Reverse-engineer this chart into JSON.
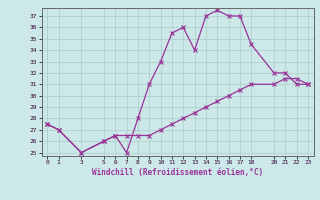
{
  "xlabel": "Windchill (Refroidissement éolien,°C)",
  "background_color": "#cce8e8",
  "line_color": "#993399",
  "grid_color": "#aacccc",
  "ylim": [
    24.7,
    37.7
  ],
  "xlim": [
    -0.5,
    23.5
  ],
  "yticks": [
    25,
    26,
    27,
    28,
    29,
    30,
    31,
    32,
    33,
    34,
    35,
    36,
    37
  ],
  "xticks": [
    0,
    1,
    3,
    5,
    6,
    7,
    8,
    9,
    10,
    11,
    12,
    13,
    14,
    15,
    16,
    17,
    18,
    20,
    21,
    22,
    23
  ],
  "line1_x": [
    0,
    1,
    3,
    5,
    6,
    7,
    8,
    9,
    10,
    11,
    12,
    13,
    14,
    15,
    16,
    17,
    18,
    20,
    21,
    22,
    23
  ],
  "line1_y": [
    27.5,
    27.0,
    25.0,
    26.0,
    26.5,
    25.0,
    28.0,
    31.0,
    33.0,
    35.5,
    36.0,
    34.0,
    37.0,
    37.5,
    37.0,
    37.0,
    34.5,
    32.0,
    32.0,
    31.0,
    31.0
  ],
  "line2_x": [
    0,
    1,
    3,
    5,
    6,
    7,
    8,
    9,
    10,
    11,
    12,
    13,
    14,
    15,
    16,
    17,
    18,
    20,
    21,
    22,
    23
  ],
  "line2_y": [
    27.5,
    27.0,
    25.0,
    26.0,
    26.5,
    26.5,
    26.5,
    26.5,
    27.0,
    27.5,
    28.0,
    28.5,
    29.0,
    29.5,
    30.0,
    30.5,
    31.0,
    31.0,
    31.5,
    31.5,
    31.0
  ]
}
